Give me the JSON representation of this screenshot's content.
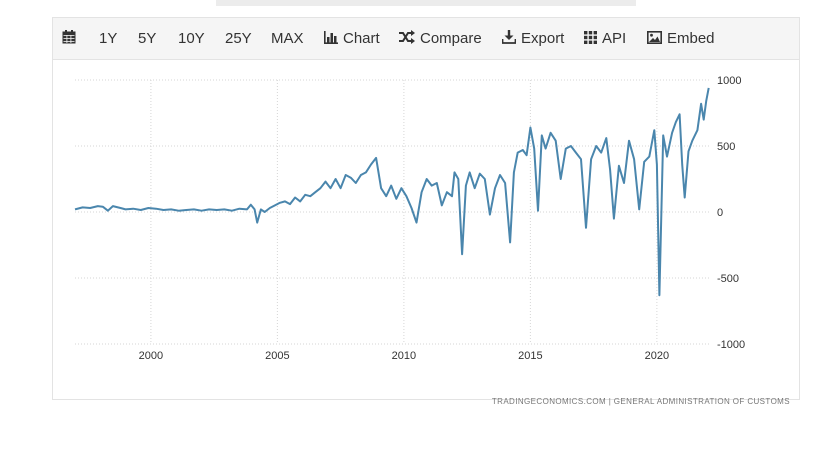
{
  "toolbar": {
    "items": [
      {
        "label": ""
      },
      {
        "label": "1Y"
      },
      {
        "label": "5Y"
      },
      {
        "label": "10Y"
      },
      {
        "label": "25Y"
      },
      {
        "label": "MAX"
      },
      {
        "label": "Chart"
      },
      {
        "label": "Compare"
      },
      {
        "label": "Export"
      },
      {
        "label": "API"
      },
      {
        "label": "Embed"
      }
    ],
    "icons": [
      "calendar-icon",
      "bar-chart-icon",
      "shuffle-icon",
      "download-icon",
      "grid-icon",
      "image-icon"
    ]
  },
  "source_text": "TRADINGECONOMICS.COM  |  GENERAL ADMINISTRATION OF CUSTOMS",
  "chart_data": {
    "type": "line",
    "title": "",
    "xlabel": "",
    "ylabel": "",
    "xlim": [
      1997,
      2022.1
    ],
    "ylim": [
      -1000,
      1000
    ],
    "x_ticks": [
      2000,
      2005,
      2010,
      2015,
      2020
    ],
    "y_ticks": [
      1000,
      500,
      0,
      -500,
      -1000
    ],
    "y_axis_side": "right",
    "grid": true,
    "line_color": "#4a86ad",
    "series": [
      {
        "name": "",
        "points": [
          [
            1997.0,
            20
          ],
          [
            1997.3,
            35
          ],
          [
            1997.6,
            30
          ],
          [
            1997.9,
            45
          ],
          [
            1998.1,
            40
          ],
          [
            1998.3,
            10
          ],
          [
            1998.5,
            45
          ],
          [
            1998.8,
            30
          ],
          [
            1999.0,
            20
          ],
          [
            1999.3,
            25
          ],
          [
            1999.6,
            15
          ],
          [
            1999.9,
            30
          ],
          [
            2000.2,
            25
          ],
          [
            2000.5,
            15
          ],
          [
            2000.8,
            20
          ],
          [
            2001.1,
            10
          ],
          [
            2001.4,
            15
          ],
          [
            2001.7,
            20
          ],
          [
            2002.0,
            10
          ],
          [
            2002.3,
            20
          ],
          [
            2002.6,
            15
          ],
          [
            2002.9,
            20
          ],
          [
            2003.2,
            10
          ],
          [
            2003.5,
            25
          ],
          [
            2003.8,
            20
          ],
          [
            2003.95,
            55
          ],
          [
            2004.1,
            20
          ],
          [
            2004.2,
            -80
          ],
          [
            2004.35,
            20
          ],
          [
            2004.5,
            0
          ],
          [
            2004.7,
            30
          ],
          [
            2004.9,
            50
          ],
          [
            2005.1,
            70
          ],
          [
            2005.3,
            80
          ],
          [
            2005.5,
            60
          ],
          [
            2005.7,
            110
          ],
          [
            2005.9,
            80
          ],
          [
            2006.1,
            130
          ],
          [
            2006.3,
            120
          ],
          [
            2006.5,
            150
          ],
          [
            2006.7,
            180
          ],
          [
            2006.9,
            230
          ],
          [
            2007.1,
            180
          ],
          [
            2007.3,
            250
          ],
          [
            2007.5,
            180
          ],
          [
            2007.7,
            280
          ],
          [
            2007.9,
            260
          ],
          [
            2008.1,
            220
          ],
          [
            2008.3,
            280
          ],
          [
            2008.5,
            300
          ],
          [
            2008.7,
            360
          ],
          [
            2008.9,
            410
          ],
          [
            2009.1,
            180
          ],
          [
            2009.3,
            120
          ],
          [
            2009.5,
            200
          ],
          [
            2009.7,
            100
          ],
          [
            2009.9,
            180
          ],
          [
            2010.1,
            120
          ],
          [
            2010.3,
            30
          ],
          [
            2010.5,
            -80
          ],
          [
            2010.7,
            150
          ],
          [
            2010.9,
            250
          ],
          [
            2011.1,
            200
          ],
          [
            2011.3,
            220
          ],
          [
            2011.5,
            50
          ],
          [
            2011.7,
            150
          ],
          [
            2011.9,
            120
          ],
          [
            2012.0,
            300
          ],
          [
            2012.15,
            250
          ],
          [
            2012.3,
            -320
          ],
          [
            2012.45,
            200
          ],
          [
            2012.6,
            300
          ],
          [
            2012.8,
            180
          ],
          [
            2013.0,
            290
          ],
          [
            2013.2,
            250
          ],
          [
            2013.4,
            -20
          ],
          [
            2013.6,
            180
          ],
          [
            2013.8,
            280
          ],
          [
            2014.0,
            220
          ],
          [
            2014.2,
            -230
          ],
          [
            2014.35,
            300
          ],
          [
            2014.5,
            450
          ],
          [
            2014.7,
            470
          ],
          [
            2014.85,
            430
          ],
          [
            2015.0,
            640
          ],
          [
            2015.15,
            480
          ],
          [
            2015.3,
            10
          ],
          [
            2015.45,
            580
          ],
          [
            2015.6,
            480
          ],
          [
            2015.8,
            600
          ],
          [
            2016.0,
            540
          ],
          [
            2016.2,
            250
          ],
          [
            2016.4,
            480
          ],
          [
            2016.6,
            500
          ],
          [
            2016.8,
            450
          ],
          [
            2017.0,
            400
          ],
          [
            2017.2,
            -120
          ],
          [
            2017.4,
            400
          ],
          [
            2017.6,
            500
          ],
          [
            2017.8,
            450
          ],
          [
            2018.0,
            560
          ],
          [
            2018.15,
            320
          ],
          [
            2018.3,
            -50
          ],
          [
            2018.5,
            350
          ],
          [
            2018.7,
            220
          ],
          [
            2018.9,
            540
          ],
          [
            2019.1,
            400
          ],
          [
            2019.3,
            20
          ],
          [
            2019.5,
            380
          ],
          [
            2019.7,
            420
          ],
          [
            2019.9,
            620
          ],
          [
            2020.0,
            360
          ],
          [
            2020.1,
            -630
          ],
          [
            2020.25,
            580
          ],
          [
            2020.4,
            420
          ],
          [
            2020.6,
            600
          ],
          [
            2020.75,
            680
          ],
          [
            2020.9,
            740
          ],
          [
            2021.0,
            360
          ],
          [
            2021.1,
            110
          ],
          [
            2021.25,
            460
          ],
          [
            2021.4,
            540
          ],
          [
            2021.6,
            620
          ],
          [
            2021.75,
            820
          ],
          [
            2021.85,
            700
          ],
          [
            2021.95,
            840
          ],
          [
            2022.05,
            940
          ]
        ]
      }
    ]
  }
}
